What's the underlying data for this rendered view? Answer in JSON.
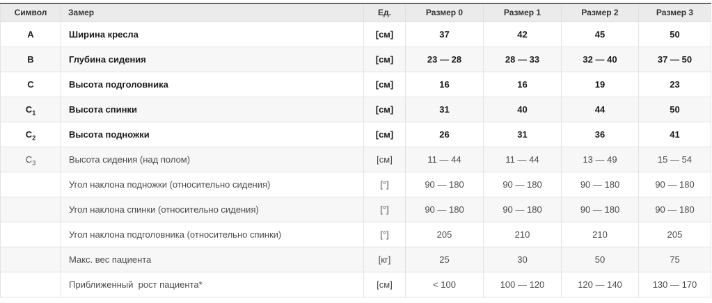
{
  "table": {
    "columns": [
      {
        "key": "symbol",
        "label": "Символ"
      },
      {
        "key": "measure",
        "label": "Замер"
      },
      {
        "key": "unit",
        "label": "Ед."
      },
      {
        "key": "size0",
        "label": "Размер 0"
      },
      {
        "key": "size1",
        "label": "Размер 1"
      },
      {
        "key": "size2",
        "label": "Размер 2"
      },
      {
        "key": "size3",
        "label": "Размер 3"
      }
    ],
    "rows": [
      {
        "symbol": "A",
        "sub": "",
        "measure": "Ширина кресла",
        "unit": "[см]",
        "size0": "37",
        "size1": "42",
        "size2": "45",
        "size3": "50",
        "bold": true
      },
      {
        "symbol": "B",
        "sub": "",
        "measure": "Глубина сидения",
        "unit": "[см]",
        "size0": "23 — 28",
        "size1": "28 — 33",
        "size2": "32 — 40",
        "size3": "37 — 50",
        "bold": true
      },
      {
        "symbol": "C",
        "sub": "",
        "measure": "Высота подголовника",
        "unit": "[см]",
        "size0": "16",
        "size1": "16",
        "size2": "19",
        "size3": "23",
        "bold": true
      },
      {
        "symbol": "C",
        "sub": "1",
        "measure": "Высота спинки",
        "unit": "[см]",
        "size0": "31",
        "size1": "40",
        "size2": "44",
        "size3": "50",
        "bold": true
      },
      {
        "symbol": "C",
        "sub": "2",
        "measure": "Высота подножки",
        "unit": "[см]",
        "size0": "26",
        "size1": "31",
        "size2": "36",
        "size3": "41",
        "bold": true
      },
      {
        "symbol": "C",
        "sub": "3",
        "measure": "Высота сидения (над полом)",
        "unit": "[см]",
        "size0": "11 — 44",
        "size1": "11 — 44",
        "size2": "13 — 49",
        "size3": "15 — 54",
        "bold": false
      },
      {
        "symbol": "",
        "sub": "",
        "measure": "Угол наклона подножки (относительно сидения)",
        "unit": "[°]",
        "size0": "90 — 180",
        "size1": "90 — 180",
        "size2": "90 — 180",
        "size3": "90 — 180",
        "bold": false
      },
      {
        "symbol": "",
        "sub": "",
        "measure": "Угол наклона спинки (относительно сидения)",
        "unit": "[°]",
        "size0": "90 — 180",
        "size1": "90 — 180",
        "size2": "90 — 180",
        "size3": "90 — 180",
        "bold": false
      },
      {
        "symbol": "",
        "sub": "",
        "measure": "Угол наклона подголовника (относительно спинки)",
        "unit": "[°]",
        "size0": "205",
        "size1": "210",
        "size2": "210",
        "size3": "205",
        "bold": false
      },
      {
        "symbol": "",
        "sub": "",
        "measure": "Макс. вес пациента",
        "unit": "[кг]",
        "size0": "25",
        "size1": "30",
        "size2": "50",
        "size3": "75",
        "bold": false
      },
      {
        "symbol": "",
        "sub": "",
        "measure": "Приближенный  рост пациента*",
        "unit": "[см]",
        "size0": "< 100",
        "size1": "100 — 120",
        "size2": "120 — 140",
        "size3": "130 — 170",
        "bold": false
      }
    ]
  },
  "colors": {
    "header_bg": "#ebebeb",
    "stripe_bg": "#f7f7f7",
    "grid_border": "#e2e2e2",
    "top_border": "#676767",
    "bold_text": "#1c1c1c",
    "regular_text": "#4a4a4a",
    "header_text": "#333333"
  }
}
